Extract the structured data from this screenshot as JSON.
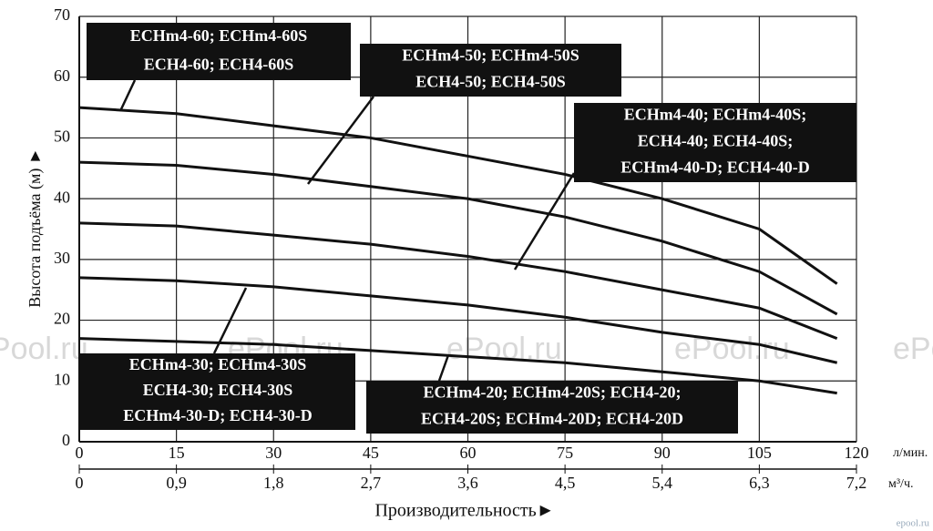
{
  "chart_data": {
    "type": "line",
    "y_label": "Высота подъёма (м) ►",
    "x_label": "Производительность►",
    "x_unit": "л/мин.",
    "x2_unit": "м³/ч.",
    "watermark": "ePool.ru",
    "footer": "epool.ru",
    "grid": true,
    "xlim": [
      0,
      120
    ],
    "xticks": [
      0,
      15,
      30,
      45,
      60,
      75,
      90,
      105,
      120
    ],
    "x2lim": [
      0,
      7.2
    ],
    "x2ticks": [
      0,
      {
        "value": 0.9,
        "label": "0,9"
      },
      {
        "value": 1.8,
        "label": "1,8"
      },
      {
        "value": 2.7,
        "label": "2,7"
      },
      {
        "value": 3.6,
        "label": "3,6"
      },
      {
        "value": 4.5,
        "label": "4,5"
      },
      {
        "value": 5.4,
        "label": "5,4"
      },
      {
        "value": 6.3,
        "label": "6,3"
      },
      {
        "value": 7.2,
        "label": "7,2"
      }
    ],
    "ylim": [
      0,
      70
    ],
    "yticks": [
      0,
      10,
      20,
      30,
      40,
      50,
      60,
      70
    ],
    "x": [
      0,
      15,
      30,
      45,
      60,
      75,
      90,
      105,
      117
    ],
    "series": [
      {
        "color": "#111111",
        "values": [
          55,
          54,
          52,
          50,
          47,
          44,
          40,
          35,
          26
        ]
      },
      {
        "color": "#111111",
        "values": [
          46,
          45.5,
          44,
          42,
          40,
          37,
          33,
          28,
          21
        ]
      },
      {
        "color": "#111111",
        "values": [
          36,
          35.5,
          34,
          32.5,
          30.5,
          28,
          25,
          22,
          17
        ]
      },
      {
        "color": "#111111",
        "values": [
          27,
          26.5,
          25.5,
          24,
          22.5,
          20.5,
          18,
          16,
          13
        ]
      },
      {
        "color": "#111111",
        "values": [
          17,
          16.5,
          16,
          15,
          14,
          13,
          11.5,
          10,
          8
        ]
      }
    ],
    "annotations": [
      {
        "lines": [
          "ECHm4-60; ECHm4-60S",
          "ECH4-60; ECH4-60S"
        ]
      },
      {
        "lines": [
          "ECHm4-50; ECHm4-50S",
          "ECH4-50; ECH4-50S"
        ]
      },
      {
        "lines": [
          "ECHm4-40; ECHm4-40S;",
          "ECH4-40; ECH4-40S;",
          "ECHm4-40-D; ECH4-40-D"
        ]
      },
      {
        "lines": [
          "ECHm4-30; ECHm4-30S",
          "ECH4-30; ECH4-30S",
          "ECHm4-30-D; ECH4-30-D"
        ]
      },
      {
        "lines": [
          "ECHm4-20; ECHm4-20S; ECH4-20;",
          "ECH4-20S; ECHm4-20D; ECH4-20D"
        ]
      }
    ]
  }
}
